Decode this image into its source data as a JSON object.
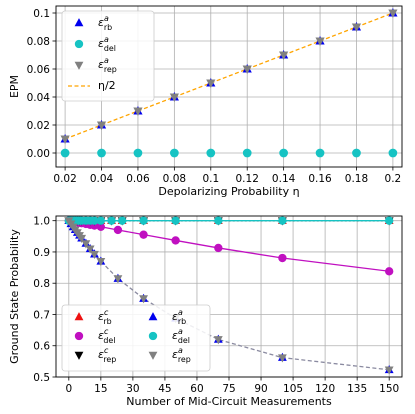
{
  "colors": {
    "rb": "#0000ee",
    "del": "#16c3c3",
    "rep": "#808080",
    "eta_line": "#ffa500",
    "rb_c": "#ee1111",
    "del_c": "#c010c0",
    "rep_c": "#000000",
    "grid": "#b0b0b0"
  },
  "chart_data": [
    {
      "type": "scatter",
      "xlabel": "Depolarizing Probability η",
      "ylabel": "EPM",
      "xlim": [
        0.015,
        0.205
      ],
      "ylim": [
        -0.01,
        0.105
      ],
      "grid": true,
      "legend_position": "top-left",
      "x_ticks": [
        0.02,
        0.04,
        0.06,
        0.08,
        0.1,
        0.12,
        0.14,
        0.16,
        0.18,
        0.2
      ],
      "x_tick_labels": [
        "0.02",
        "0.04",
        "0.06",
        "0.08",
        "0.1",
        "0.12",
        "0.14",
        "0.16",
        "0.18",
        "0.2"
      ],
      "y_ticks": [
        0.0,
        0.02,
        0.04,
        0.06,
        0.08,
        0.1
      ],
      "y_tick_labels": [
        "0.00",
        "0.02",
        "0.04",
        "0.06",
        "0.08",
        "0.1"
      ],
      "x": [
        0.02,
        0.04,
        0.06,
        0.08,
        0.1,
        0.12,
        0.14,
        0.16,
        0.18,
        0.2
      ],
      "series": [
        {
          "key": "rb",
          "marker": "triangle-up",
          "legend": {
            "sym": "ε",
            "sup": "a",
            "sub": "rb"
          },
          "values": [
            0.01,
            0.02,
            0.03,
            0.04,
            0.05,
            0.06,
            0.07,
            0.08,
            0.09,
            0.1
          ]
        },
        {
          "key": "del",
          "marker": "circle",
          "legend": {
            "sym": "ε",
            "sup": "a",
            "sub": "del"
          },
          "values": [
            0,
            0,
            0,
            0,
            0,
            0,
            0,
            0,
            0,
            0
          ]
        },
        {
          "key": "rep",
          "marker": "triangle-down",
          "legend": {
            "sym": "ε",
            "sup": "a",
            "sub": "rep"
          },
          "values": [
            0.01,
            0.02,
            0.03,
            0.04,
            0.05,
            0.06,
            0.07,
            0.08,
            0.09,
            0.1
          ]
        },
        {
          "key": "eta_half",
          "style": "dashed-line",
          "legend": {
            "text": "η/2"
          },
          "values": [
            0.01,
            0.02,
            0.03,
            0.04,
            0.05,
            0.06,
            0.07,
            0.08,
            0.09,
            0.1
          ]
        }
      ]
    },
    {
      "type": "scatter",
      "xlabel": "Number of Mid-Circuit Measurements",
      "ylabel": "Ground State Probability",
      "xlim": [
        -6,
        156
      ],
      "ylim": [
        0.5,
        1.015
      ],
      "grid": true,
      "legend_position": "bottom-left",
      "x_ticks": [
        0,
        15,
        30,
        45,
        60,
        75,
        90,
        105,
        120,
        135,
        150
      ],
      "x_tick_labels": [
        "0",
        "15",
        "30",
        "45",
        "60",
        "75",
        "90",
        "105",
        "120",
        "135",
        "150"
      ],
      "y_ticks": [
        0.5,
        0.6,
        0.7,
        0.8,
        0.9,
        1.0
      ],
      "y_tick_labels": [
        "0.5",
        "0.6",
        "0.7",
        "0.8",
        "0.9",
        "1.0"
      ],
      "x_dense": [
        0,
        1,
        2,
        3,
        4,
        5,
        6,
        8,
        10,
        12,
        15,
        20,
        25,
        35,
        50,
        70,
        100,
        150
      ],
      "x_sparse": [
        0,
        1,
        2,
        3,
        4,
        5,
        6,
        8,
        10,
        12,
        15,
        23,
        35,
        50,
        70,
        100,
        150
      ],
      "series": [
        {
          "key": "rb_c",
          "marker": "triangle-up",
          "on": "x_dense",
          "legend": {
            "sym": "ε",
            "sup": "c",
            "sub": "rb"
          },
          "values": [
            1,
            1,
            1,
            1,
            1,
            1,
            1,
            1,
            1,
            1,
            1,
            1,
            1,
            1,
            1,
            1,
            1,
            1
          ]
        },
        {
          "key": "del_c",
          "marker": "circle",
          "on": "x_sparse",
          "legend": {
            "sym": "ε",
            "sup": "c",
            "sub": "del"
          },
          "values": [
            1.0,
            0.9987,
            0.9973,
            0.996,
            0.9947,
            0.9934,
            0.9921,
            0.9895,
            0.9869,
            0.9843,
            0.9805,
            0.9703,
            0.9553,
            0.9368,
            0.9128,
            0.8806,
            0.8382
          ]
        },
        {
          "key": "rep_c",
          "marker": "triangle-down",
          "on": "x_dense",
          "legend": {
            "sym": "ε",
            "sup": "c",
            "sub": "rep"
          },
          "values": [
            1,
            1,
            1,
            1,
            1,
            1,
            1,
            1,
            1,
            1,
            1,
            1,
            1,
            1,
            1,
            1,
            1,
            1
          ]
        },
        {
          "key": "rb",
          "marker": "triangle-up",
          "on": "x_sparse",
          "legend": {
            "sym": "ε",
            "sup": "a",
            "sub": "rb"
          },
          "values": [
            1.0,
            0.99,
            0.98,
            0.971,
            0.962,
            0.953,
            0.944,
            0.927,
            0.91,
            0.893,
            0.87,
            0.815,
            0.751,
            0.688,
            0.62,
            0.562,
            0.523
          ]
        },
        {
          "key": "del",
          "marker": "circle",
          "on": "x_dense",
          "legend": {
            "sym": "ε",
            "sup": "a",
            "sub": "del"
          },
          "values": [
            1,
            1,
            1,
            1,
            1,
            1,
            1,
            1,
            1,
            1,
            1,
            1,
            1,
            1,
            1,
            1,
            1,
            1
          ]
        },
        {
          "key": "rep",
          "marker": "triangle-down",
          "on": "x_sparse",
          "legend": {
            "sym": "ε",
            "sup": "a",
            "sub": "rep"
          },
          "values": [
            1.0,
            0.99,
            0.98,
            0.971,
            0.962,
            0.953,
            0.944,
            0.927,
            0.91,
            0.893,
            0.87,
            0.815,
            0.751,
            0.688,
            0.62,
            0.562,
            0.523
          ]
        }
      ]
    }
  ]
}
